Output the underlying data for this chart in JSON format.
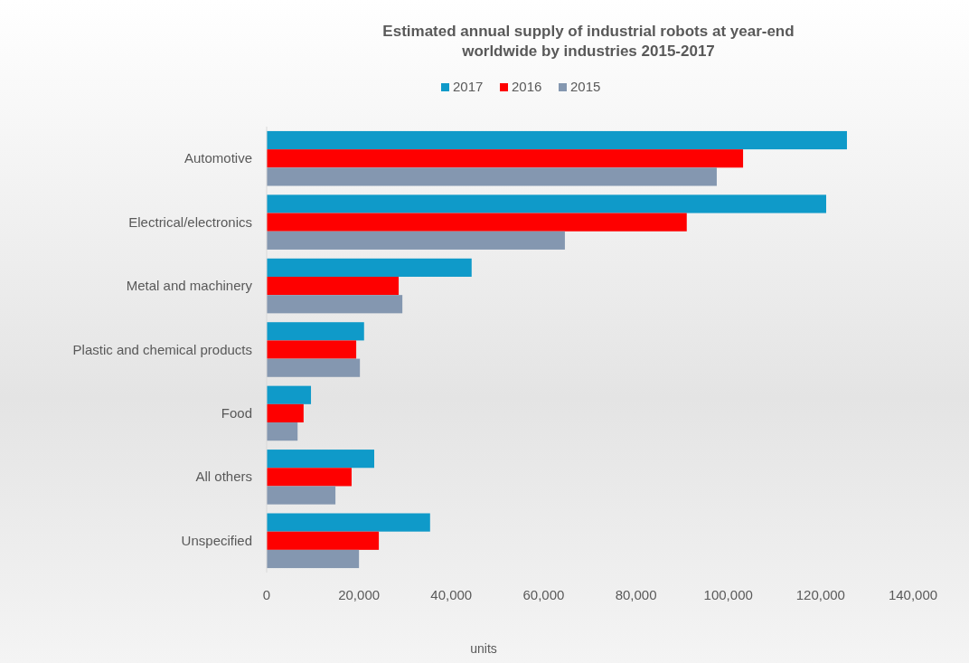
{
  "chart_data": {
    "type": "bar",
    "orientation": "horizontal",
    "title": "Estimated annual supply of industrial robots at year-end\nworldwide  by industries 2015-2017",
    "xlabel": "units",
    "categories": [
      "Automotive",
      "Electrical/electronics",
      "Metal and machinery",
      "Plastic and chemical products",
      "Food",
      "All others",
      "Unspecified"
    ],
    "series": [
      {
        "name": "2017",
        "color": "#0f9ac9",
        "values": [
          125700,
          121200,
          44400,
          21100,
          9600,
          23300,
          35400
        ]
      },
      {
        "name": "2016",
        "color": "#fe0000",
        "values": [
          103200,
          91000,
          28600,
          19400,
          8000,
          18400,
          24300
        ]
      },
      {
        "name": "2015",
        "color": "#8497b0",
        "values": [
          97500,
          64600,
          29400,
          20200,
          6700,
          14900,
          20000
        ]
      }
    ],
    "xlim": [
      0,
      140000
    ],
    "xticks": [
      {
        "value": 0,
        "label": "0"
      },
      {
        "value": 20000,
        "label": "20,000"
      },
      {
        "value": 40000,
        "label": "40,000"
      },
      {
        "value": 60000,
        "label": "60,000"
      },
      {
        "value": 80000,
        "label": "80,000"
      },
      {
        "value": 100000,
        "label": "100,000"
      },
      {
        "value": 120000,
        "label": "120,000"
      },
      {
        "value": 140000,
        "label": "140,000"
      }
    ],
    "grid": false,
    "legend": "top"
  }
}
